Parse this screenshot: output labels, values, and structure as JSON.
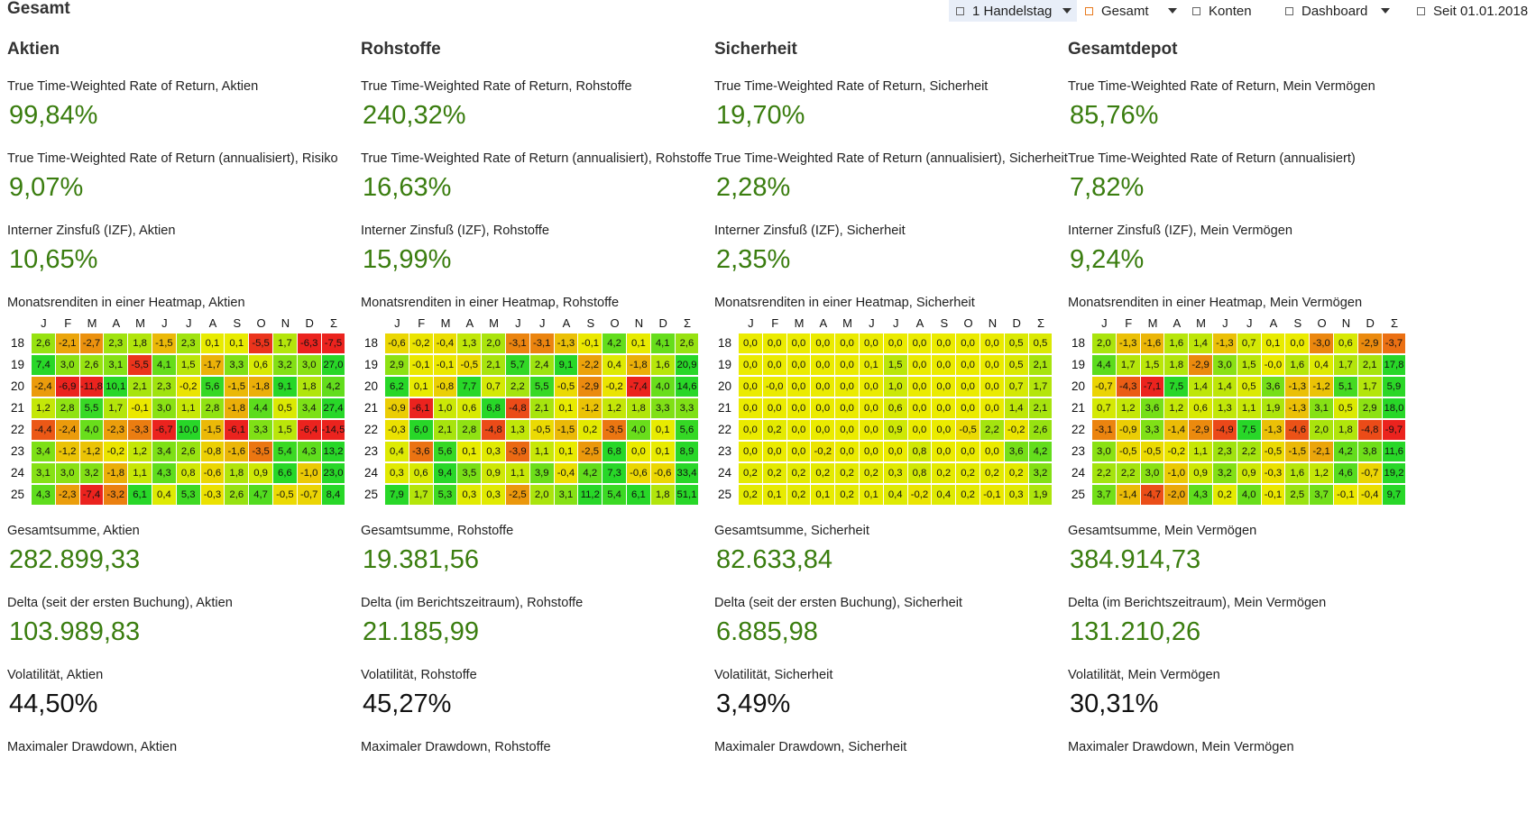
{
  "page": {
    "title": "Gesamt"
  },
  "toolbar": {
    "handelstag_label": "1 Handelstag",
    "gesamt_label": "Gesamt",
    "konten_label": "Konten",
    "dashboard_label": "Dashboard",
    "period_label": "Seit 01.01.2018"
  },
  "heatmap_months": [
    "J",
    "F",
    "M",
    "A",
    "M",
    "J",
    "J",
    "A",
    "S",
    "O",
    "N",
    "D",
    "Σ"
  ],
  "heatmap_years": [
    "18",
    "19",
    "20",
    "21",
    "22",
    "23",
    "24",
    "25"
  ],
  "columns": [
    {
      "title": "Aktien",
      "ttwror_label": "True Time-Weighted Rate of Return, Aktien",
      "ttwror_value": "99,84%",
      "ttwror_ann_label": "True Time-Weighted Rate of Return (annualisiert), Risiko",
      "ttwror_ann_value": "9,07%",
      "izf_label": "Interner Zinsfuß (IZF), Aktien",
      "izf_value": "10,65%",
      "heatmap_label": "Monatsrenditen in einer Heatmap, Aktien",
      "heatmap": [
        [
          "2,6",
          "-2,1",
          "-2,7",
          "2,3",
          "1,8",
          "-1,5",
          "2,3",
          "0,1",
          "0,1",
          "-5,5",
          "1,7",
          "-6,3",
          "-7,5"
        ],
        [
          "7,4",
          "3,0",
          "2,6",
          "3,1",
          "-5,5",
          "4,1",
          "1,5",
          "-1,7",
          "3,3",
          "0,6",
          "3,2",
          "3,0",
          "27,0"
        ],
        [
          "-2,4",
          "-6,9",
          "-11,8",
          "10,1",
          "2,1",
          "2,3",
          "-0,2",
          "5,6",
          "-1,5",
          "-1,8",
          "9,1",
          "1,8",
          "4,2"
        ],
        [
          "1,2",
          "2,8",
          "5,5",
          "1,7",
          "-0,1",
          "3,0",
          "1,1",
          "2,8",
          "-1,8",
          "4,4",
          "0,5",
          "3,4",
          "27,4"
        ],
        [
          "-4,4",
          "-2,4",
          "4,0",
          "-2,3",
          "-3,3",
          "-6,7",
          "10,0",
          "-1,5",
          "-6,1",
          "3,3",
          "1,5",
          "-6,4",
          "-14,5"
        ],
        [
          "3,4",
          "-1,2",
          "-1,2",
          "-0,2",
          "1,2",
          "3,4",
          "2,6",
          "-0,8",
          "-1,6",
          "-3,5",
          "5,4",
          "4,3",
          "13,2"
        ],
        [
          "3,1",
          "3,0",
          "3,2",
          "-1,8",
          "1,1",
          "4,3",
          "0,8",
          "-0,6",
          "1,8",
          "0,9",
          "6,6",
          "-1,0",
          "23,0"
        ],
        [
          "4,3",
          "-2,3",
          "-7,4",
          "-3,2",
          "6,1",
          "0,4",
          "5,3",
          "-0,3",
          "2,6",
          "4,7",
          "-0,5",
          "-0,7",
          "8,4"
        ]
      ],
      "sum_label": "Gesamtsumme, Aktien",
      "sum_value": "282.899,33",
      "delta_label": "Delta (seit der ersten Buchung), Aktien",
      "delta_value": "103.989,83",
      "vol_label": "Volatilität, Aktien",
      "vol_value": "44,50%",
      "dd_label": "Maximaler Drawdown, Aktien"
    },
    {
      "title": "Rohstoffe",
      "ttwror_label": "True Time-Weighted Rate of Return, Rohstoffe",
      "ttwror_value": "240,32%",
      "ttwror_ann_label": "True Time-Weighted Rate of Return (annualisiert), Rohstoffe",
      "ttwror_ann_value": "16,63%",
      "izf_label": "Interner Zinsfuß (IZF), Rohstoffe",
      "izf_value": "15,99%",
      "heatmap_label": "Monatsrenditen in einer Heatmap, Rohstoffe",
      "heatmap": [
        [
          "-0,6",
          "-0,2",
          "-0,4",
          "1,3",
          "2,0",
          "-3,1",
          "-3,1",
          "-1,3",
          "-0,1",
          "4,2",
          "0,1",
          "4,1",
          "2,6"
        ],
        [
          "2,9",
          "-0,1",
          "-0,1",
          "-0,5",
          "2,1",
          "5,7",
          "2,4",
          "9,1",
          "-2,2",
          "0,4",
          "-1,8",
          "1,6",
          "20,9"
        ],
        [
          "6,2",
          "0,1",
          "-0,8",
          "7,7",
          "0,7",
          "2,2",
          "5,5",
          "-0,5",
          "-2,9",
          "-0,2",
          "-7,4",
          "4,0",
          "14,6"
        ],
        [
          "-0,9",
          "-6,1",
          "1,0",
          "0,6",
          "6,8",
          "-4,8",
          "2,1",
          "0,1",
          "-1,2",
          "1,2",
          "1,8",
          "3,3",
          "3,3"
        ],
        [
          "-0,3",
          "6,0",
          "2,1",
          "2,8",
          "-4,8",
          "1,3",
          "-0,5",
          "-1,5",
          "0,2",
          "-3,5",
          "4,0",
          "0,1",
          "5,6"
        ],
        [
          "0,4",
          "-3,6",
          "5,6",
          "0,1",
          "0,3",
          "-3,9",
          "1,1",
          "0,1",
          "-2,5",
          "6,8",
          "0,0",
          "0,1",
          "8,9"
        ],
        [
          "0,3",
          "0,6",
          "9,4",
          "3,5",
          "0,9",
          "1,1",
          "3,9",
          "-0,4",
          "4,2",
          "7,3",
          "-0,6",
          "-0,6",
          "33,4"
        ],
        [
          "7,9",
          "1,7",
          "5,3",
          "0,3",
          "0,3",
          "-2,5",
          "2,0",
          "3,1",
          "11,2",
          "5,4",
          "6,1",
          "1,8",
          "51,1"
        ]
      ],
      "sum_label": "Gesamtsumme, Rohstoffe",
      "sum_value": "19.381,56",
      "delta_label": "Delta (im Berichtszeitraum), Rohstoffe",
      "delta_value": "21.185,99",
      "vol_label": "Volatilität, Rohstoffe",
      "vol_value": "45,27%",
      "dd_label": "Maximaler Drawdown, Rohstoffe"
    },
    {
      "title": "Sicherheit",
      "ttwror_label": "True Time-Weighted Rate of Return, Sicherheit",
      "ttwror_value": "19,70%",
      "ttwror_ann_label": "True Time-Weighted Rate of Return (annualisiert), Sicherheit",
      "ttwror_ann_value": "2,28%",
      "izf_label": "Interner Zinsfuß (IZF), Sicherheit",
      "izf_value": "2,35%",
      "heatmap_label": "Monatsrenditen in einer Heatmap, Sicherheit",
      "heatmap": [
        [
          "0,0",
          "0,0",
          "0,0",
          "0,0",
          "0,0",
          "0,0",
          "0,0",
          "0,0",
          "0,0",
          "0,0",
          "0,0",
          "0,5",
          "0,5"
        ],
        [
          "0,0",
          "0,0",
          "0,0",
          "0,0",
          "0,0",
          "0,1",
          "1,5",
          "0,0",
          "0,0",
          "0,0",
          "0,0",
          "0,5",
          "2,1"
        ],
        [
          "0,0",
          "-0,0",
          "0,0",
          "0,0",
          "0,0",
          "0,0",
          "1,0",
          "0,0",
          "0,0",
          "0,0",
          "0,0",
          "0,7",
          "1,7"
        ],
        [
          "0,0",
          "0,0",
          "0,0",
          "0,0",
          "0,0",
          "0,0",
          "0,6",
          "0,0",
          "0,0",
          "0,0",
          "0,0",
          "1,4",
          "2,1"
        ],
        [
          "0,0",
          "0,2",
          "0,0",
          "0,0",
          "0,0",
          "0,0",
          "0,9",
          "0,0",
          "0,0",
          "-0,5",
          "2,2",
          "-0,2",
          "2,6"
        ],
        [
          "0,0",
          "0,0",
          "0,0",
          "-0,2",
          "0,0",
          "0,0",
          "0,0",
          "0,8",
          "0,0",
          "0,0",
          "0,0",
          "3,6",
          "4,2"
        ],
        [
          "0,2",
          "0,2",
          "0,2",
          "0,2",
          "0,2",
          "0,2",
          "0,3",
          "0,8",
          "0,2",
          "0,2",
          "0,2",
          "0,2",
          "3,2"
        ],
        [
          "0,2",
          "0,1",
          "0,2",
          "0,1",
          "0,2",
          "0,1",
          "0,4",
          "-0,2",
          "0,4",
          "0,2",
          "-0,1",
          "0,3",
          "1,9"
        ]
      ],
      "sum_label": "Gesamtsumme, Sicherheit",
      "sum_value": "82.633,84",
      "delta_label": "Delta (seit der ersten Buchung), Sicherheit",
      "delta_value": "6.885,98",
      "vol_label": "Volatilität, Sicherheit",
      "vol_value": "3,49%",
      "dd_label": "Maximaler Drawdown, Sicherheit"
    },
    {
      "title": "Gesamtdepot",
      "ttwror_label": "True Time-Weighted Rate of Return, Mein Vermögen",
      "ttwror_value": "85,76%",
      "ttwror_ann_label": "True Time-Weighted Rate of Return (annualisiert)",
      "ttwror_ann_value": "7,82%",
      "izf_label": "Interner Zinsfuß (IZF), Mein Vermögen",
      "izf_value": "9,24%",
      "heatmap_label": "Monatsrenditen in einer Heatmap, Mein Vermögen",
      "heatmap": [
        [
          "2,0",
          "-1,3",
          "-1,6",
          "1,6",
          "1,4",
          "-1,3",
          "0,7",
          "0,1",
          "0,0",
          "-3,0",
          "0,6",
          "-2,9",
          "-3,7"
        ],
        [
          "4,4",
          "1,7",
          "1,5",
          "1,8",
          "-2,9",
          "3,0",
          "1,5",
          "-0,0",
          "1,6",
          "0,4",
          "1,7",
          "2,1",
          "17,8"
        ],
        [
          "-0,7",
          "-4,3",
          "-7,1",
          "7,5",
          "1,4",
          "1,4",
          "0,5",
          "3,6",
          "-1,3",
          "-1,2",
          "5,1",
          "1,7",
          "5,9"
        ],
        [
          "0,7",
          "1,2",
          "3,6",
          "1,2",
          "0,6",
          "1,3",
          "1,1",
          "1,9",
          "-1,3",
          "3,1",
          "0,5",
          "2,9",
          "18,0"
        ],
        [
          "-3,1",
          "-0,9",
          "3,3",
          "-1,4",
          "-2,9",
          "-4,9",
          "7,5",
          "-1,3",
          "-4,6",
          "2,0",
          "1,8",
          "-4,8",
          "-9,7"
        ],
        [
          "3,0",
          "-0,5",
          "-0,5",
          "-0,2",
          "1,1",
          "2,3",
          "2,2",
          "-0,5",
          "-1,5",
          "-2,1",
          "4,2",
          "3,8",
          "11,6"
        ],
        [
          "2,2",
          "2,2",
          "3,0",
          "-1,0",
          "0,9",
          "3,2",
          "0,9",
          "-0,3",
          "1,6",
          "1,2",
          "4,6",
          "-0,7",
          "19,2"
        ],
        [
          "3,7",
          "-1,4",
          "-4,7",
          "-2,0",
          "4,3",
          "0,2",
          "4,0",
          "-0,1",
          "2,5",
          "3,7",
          "-0,1",
          "-0,4",
          "9,7"
        ]
      ],
      "sum_label": "Gesamtsumme, Mein Vermögen",
      "sum_value": "384.914,73",
      "delta_label": "Delta (im Berichtszeitraum), Mein Vermögen",
      "delta_value": "131.210,26",
      "vol_label": "Volatilität, Mein Vermögen",
      "vol_value": "30,31%",
      "dd_label": "Maximaler Drawdown, Mein Vermögen"
    }
  ]
}
